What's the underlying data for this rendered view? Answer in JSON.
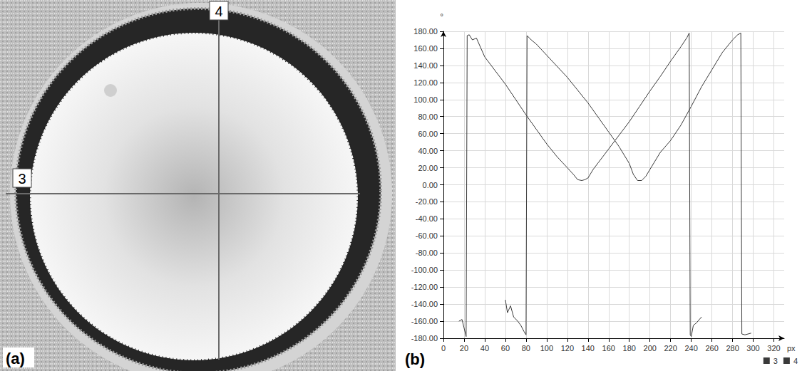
{
  "panels": {
    "a": {
      "label": "(a)",
      "line_labels": [
        "3",
        "4"
      ]
    },
    "b": {
      "label": "(b)"
    }
  },
  "chart_data": {
    "type": "line",
    "x_label": "px",
    "y_label": "°",
    "xlim": [
      0,
      330
    ],
    "xticks": [
      0,
      20,
      40,
      60,
      80,
      100,
      120,
      140,
      160,
      180,
      200,
      220,
      240,
      260,
      280,
      300,
      320
    ],
    "ylim": [
      -180,
      180
    ],
    "yticks": [
      {
        "value": -180,
        "label": "-180.00"
      },
      {
        "value": -160,
        "label": "-160.00"
      },
      {
        "value": -140,
        "label": "-140.00"
      },
      {
        "value": -120,
        "label": "-120.00"
      },
      {
        "value": -100,
        "label": "-100.00"
      },
      {
        "value": -80,
        "label": "-80.00"
      },
      {
        "value": -60,
        "label": "-60.00"
      },
      {
        "value": -40,
        "label": "-40.00"
      },
      {
        "value": -20,
        "label": "-20.00"
      },
      {
        "value": 0,
        "label": "0.00"
      },
      {
        "value": 20,
        "label": "20.00"
      },
      {
        "value": 40,
        "label": "40.00"
      },
      {
        "value": 60,
        "label": "60.00"
      },
      {
        "value": 80,
        "label": "80.00"
      },
      {
        "value": 100,
        "label": "100.00"
      },
      {
        "value": 120,
        "label": "120.00"
      },
      {
        "value": 140,
        "label": "140.00"
      },
      {
        "value": 160,
        "label": "160.00"
      },
      {
        "value": 180,
        "label": "180.00"
      }
    ],
    "grid": true,
    "legend": "bottom-right",
    "series": [
      {
        "name": "3",
        "color": "#3a3a3a",
        "x": [
          15,
          18,
          20,
          22,
          23,
          25,
          28,
          32,
          40,
          50,
          60,
          70,
          80,
          90,
          100,
          110,
          120,
          126,
          130,
          134,
          137,
          140,
          145,
          150,
          160,
          170,
          180,
          190,
          200,
          210,
          220,
          230,
          236,
          238,
          239,
          240,
          242,
          245,
          250
        ],
        "values": [
          -160,
          -158,
          -168,
          -178,
          175,
          176,
          170,
          172,
          150,
          134,
          118,
          100,
          82,
          65,
          48,
          33,
          20,
          12,
          6,
          5,
          6,
          8,
          18,
          26,
          42,
          58,
          74,
          92,
          110,
          127,
          145,
          162,
          173,
          178,
          -176,
          -178,
          -165,
          -162,
          -155
        ]
      },
      {
        "name": "4",
        "color": "#3a3a3a",
        "x": [
          60,
          62,
          65,
          68,
          72,
          75,
          78,
          80,
          81,
          85,
          90,
          100,
          120,
          140,
          160,
          170,
          180,
          184,
          188,
          192,
          196,
          200,
          210,
          220,
          230,
          240,
          250,
          260,
          270,
          280,
          285,
          288,
          289,
          292,
          298
        ],
        "values": [
          -135,
          -150,
          -142,
          -155,
          -160,
          -165,
          -172,
          -176,
          175,
          170,
          165,
          152,
          126,
          96,
          62,
          45,
          25,
          12,
          5,
          5,
          10,
          18,
          38,
          52,
          70,
          92,
          115,
          135,
          155,
          170,
          176,
          178,
          -175,
          -176,
          -174
        ]
      }
    ]
  }
}
